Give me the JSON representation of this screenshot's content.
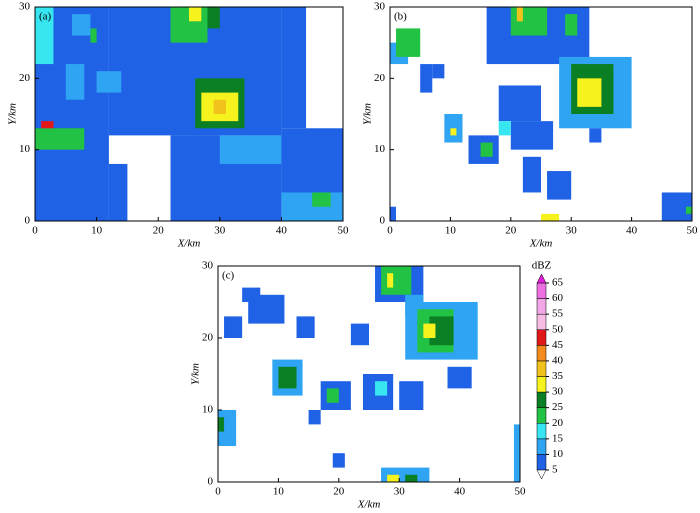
{
  "chart_data": [
    {
      "type": "heatmap",
      "label": "(a)",
      "xlabel": "X/km",
      "ylabel": "Y/km",
      "xlim": [
        0,
        50
      ],
      "ylim": [
        0,
        30
      ],
      "xticks": [
        0,
        10,
        20,
        30,
        40,
        50
      ],
      "yticks": [
        0,
        10,
        20,
        30
      ],
      "cells": [
        [
          0,
          0,
          12,
          30,
          5
        ],
        [
          12,
          12,
          40,
          30,
          5
        ],
        [
          22,
          0,
          40,
          12,
          5
        ],
        [
          40,
          0,
          50,
          13,
          5
        ],
        [
          40,
          13,
          44,
          30,
          5
        ],
        [
          12,
          0,
          15,
          8,
          5
        ],
        [
          0,
          22,
          3,
          30,
          15
        ],
        [
          5,
          17,
          8,
          22,
          10
        ],
        [
          0,
          10,
          8,
          13,
          20
        ],
        [
          1,
          13,
          3,
          14,
          45
        ],
        [
          22,
          25,
          28,
          30,
          20
        ],
        [
          25,
          28,
          27,
          30,
          30
        ],
        [
          28,
          27,
          30,
          30,
          25
        ],
        [
          26,
          13,
          34,
          20,
          25
        ],
        [
          27,
          14,
          33,
          18,
          30
        ],
        [
          29,
          15,
          31,
          17,
          35
        ],
        [
          40,
          0,
          50,
          4,
          10
        ],
        [
          45,
          2,
          48,
          4,
          20
        ],
        [
          30,
          8,
          40,
          12,
          10
        ],
        [
          9,
          25,
          10,
          27,
          20
        ],
        [
          6,
          26,
          9,
          29,
          10
        ],
        [
          10,
          18,
          14,
          21,
          10
        ]
      ]
    },
    {
      "type": "heatmap",
      "label": "(b)",
      "xlabel": "X/km",
      "ylabel": "Y/km",
      "xlim": [
        0,
        50
      ],
      "ylim": [
        0,
        30
      ],
      "xticks": [
        0,
        10,
        20,
        30,
        40,
        50
      ],
      "yticks": [
        0,
        10,
        20,
        30
      ],
      "cells": [
        [
          0,
          22,
          3,
          25,
          10
        ],
        [
          1,
          23,
          5,
          27,
          20
        ],
        [
          16,
          22,
          33,
          30,
          5
        ],
        [
          20,
          26,
          26,
          30,
          20
        ],
        [
          21,
          28,
          22,
          30,
          35
        ],
        [
          29,
          26,
          31,
          29,
          20
        ],
        [
          28,
          13,
          40,
          23,
          10
        ],
        [
          30,
          15,
          37,
          22,
          25
        ],
        [
          31,
          16,
          35,
          20,
          30
        ],
        [
          18,
          14,
          25,
          19,
          5
        ],
        [
          20,
          10,
          27,
          14,
          5
        ],
        [
          9,
          11,
          12,
          15,
          10
        ],
        [
          10,
          12,
          11,
          13,
          30
        ],
        [
          13,
          8,
          18,
          12,
          5
        ],
        [
          15,
          9,
          17,
          11,
          20
        ],
        [
          22,
          4,
          25,
          9,
          5
        ],
        [
          26,
          3,
          30,
          7,
          5
        ],
        [
          25,
          0,
          28,
          1,
          30
        ],
        [
          45,
          0,
          50,
          4,
          5
        ],
        [
          49,
          1,
          50,
          2,
          20
        ],
        [
          0,
          0,
          1,
          2,
          5
        ],
        [
          5,
          18,
          7,
          22,
          5
        ],
        [
          7,
          20,
          9,
          22,
          5
        ],
        [
          33,
          11,
          35,
          13,
          5
        ],
        [
          18,
          12,
          20,
          14,
          15
        ]
      ]
    },
    {
      "type": "heatmap",
      "label": "(c)",
      "xlabel": "X/km",
      "ylabel": "Y/km",
      "xlim": [
        0,
        50
      ],
      "ylim": [
        0,
        30
      ],
      "xticks": [
        0,
        10,
        20,
        30,
        40,
        50
      ],
      "yticks": [
        0,
        10,
        20,
        30
      ],
      "cells": [
        [
          26,
          25,
          34,
          30,
          5
        ],
        [
          27,
          26,
          32,
          30,
          20
        ],
        [
          28,
          27,
          29,
          29,
          30
        ],
        [
          31,
          23,
          34,
          26,
          10
        ],
        [
          31,
          17,
          43,
          25,
          10
        ],
        [
          33,
          18,
          39,
          24,
          20
        ],
        [
          35,
          19,
          39,
          23,
          25
        ],
        [
          34,
          20,
          36,
          22,
          30
        ],
        [
          5,
          22,
          11,
          26,
          5
        ],
        [
          1,
          20,
          4,
          23,
          5
        ],
        [
          4,
          25,
          7,
          27,
          5
        ],
        [
          9,
          12,
          14,
          17,
          10
        ],
        [
          10,
          13,
          13,
          16,
          25
        ],
        [
          0,
          5,
          3,
          10,
          10
        ],
        [
          0,
          7,
          1,
          9,
          25
        ],
        [
          17,
          10,
          22,
          14,
          5
        ],
        [
          18,
          11,
          20,
          13,
          20
        ],
        [
          24,
          10,
          29,
          15,
          5
        ],
        [
          26,
          12,
          28,
          14,
          15
        ],
        [
          22,
          19,
          25,
          22,
          5
        ],
        [
          13,
          20,
          16,
          23,
          5
        ],
        [
          27,
          0,
          35,
          2,
          10
        ],
        [
          28,
          0,
          30,
          1,
          30
        ],
        [
          31,
          0,
          33,
          1,
          25
        ],
        [
          19,
          2,
          21,
          4,
          5
        ],
        [
          15,
          8,
          17,
          10,
          5
        ],
        [
          49,
          0,
          50,
          8,
          10
        ],
        [
          30,
          10,
          34,
          14,
          5
        ],
        [
          38,
          13,
          42,
          16,
          5
        ]
      ]
    }
  ],
  "colorbar": {
    "title": "dBZ",
    "levels": [
      5,
      10,
      15,
      20,
      25,
      30,
      35,
      40,
      45,
      50,
      55,
      60,
      65
    ],
    "colors": [
      "#1f62e6",
      "#2fa4f2",
      "#38e6f2",
      "#22c244",
      "#0b7f24",
      "#f5f21e",
      "#f2c21c",
      "#f28a1e",
      "#e01818",
      "#f7bce4",
      "#f2a6e8",
      "#ec70e2"
    ],
    "under_color": "#ffffff",
    "over_color": "#e020d8"
  }
}
